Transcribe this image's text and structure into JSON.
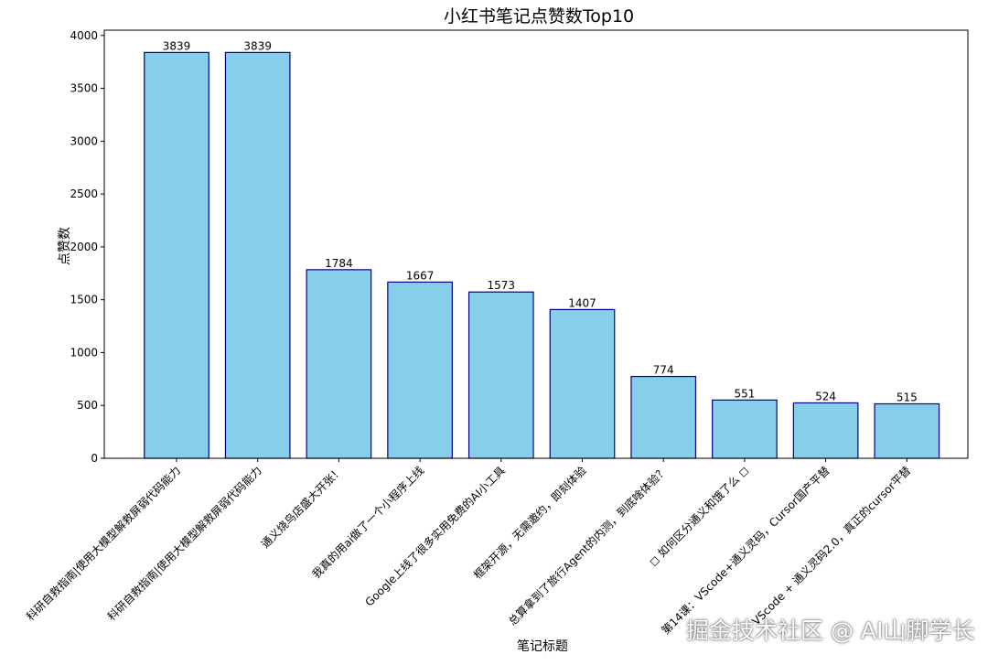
{
  "colors": {
    "bar_fill": "#87CEEB",
    "bar_stroke": "#00008B",
    "axis": "#000000"
  },
  "watermark": "掘金技术社区 @ AI山脚学长",
  "chart_data": {
    "type": "bar",
    "title": "小红书笔记点赞数Top10",
    "xlabel": "笔记标题",
    "ylabel": "点赞数",
    "ylim": [
      0,
      4050
    ],
    "yticks": [
      0,
      500,
      1000,
      1500,
      2000,
      2500,
      3000,
      3500,
      4000
    ],
    "grid": false,
    "categories": [
      "科研自救指南|使用大模型解救屏弱代码能力",
      "科研自救指南|使用大模型解救屏弱代码能力",
      "通义烧鸟店盛大开张！",
      "我真的用ai做了一个小程序上线",
      "Google上线了很多实用免费的AI小工具",
      "框架开源，无需邀约，即刻体验",
      "总算拿到了旅行Agent的内测，到底啥体验？",
      "◻ 如何区分通义和饿了么 ◻",
      "第14课：VScode+通义灵码，Cursor国产平替",
      "VScode + 通义灵码2.0，真正的cursor平替"
    ],
    "values": [
      3839,
      3839,
      1784,
      1667,
      1573,
      1407,
      774,
      551,
      524,
      515
    ],
    "data_labels": [
      "3839",
      "3839",
      "1784",
      "1667",
      "1573",
      "1407",
      "774",
      "551",
      "524",
      "515"
    ]
  }
}
